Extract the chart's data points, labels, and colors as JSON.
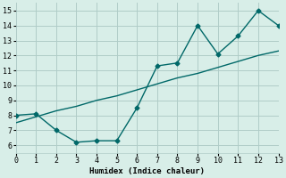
{
  "xlabel": "Humidex (Indice chaleur)",
  "bg_color": "#d8eee8",
  "grid_color": "#b0ccc8",
  "line_color": "#006868",
  "x_data": [
    0,
    1,
    2,
    3,
    4,
    5,
    6,
    7,
    8,
    9,
    10,
    11,
    12,
    13
  ],
  "y_data": [
    8.0,
    8.1,
    7.0,
    6.2,
    6.3,
    6.3,
    8.5,
    11.3,
    11.5,
    14.0,
    12.1,
    13.3,
    15.0,
    14.0
  ],
  "y_trend": [
    7.5,
    7.9,
    8.3,
    8.6,
    9.0,
    9.3,
    9.7,
    10.1,
    10.5,
    10.8,
    11.2,
    11.6,
    12.0,
    12.3
  ],
  "xlim": [
    0,
    13
  ],
  "ylim": [
    5.5,
    15.5
  ],
  "xticks": [
    0,
    1,
    2,
    3,
    4,
    5,
    6,
    7,
    8,
    9,
    10,
    11,
    12,
    13
  ],
  "yticks": [
    6,
    7,
    8,
    9,
    10,
    11,
    12,
    13,
    14,
    15
  ],
  "linewidth": 1.0,
  "font_family": "monospace",
  "font_size": 6.0,
  "xlabel_fontsize": 6.5
}
